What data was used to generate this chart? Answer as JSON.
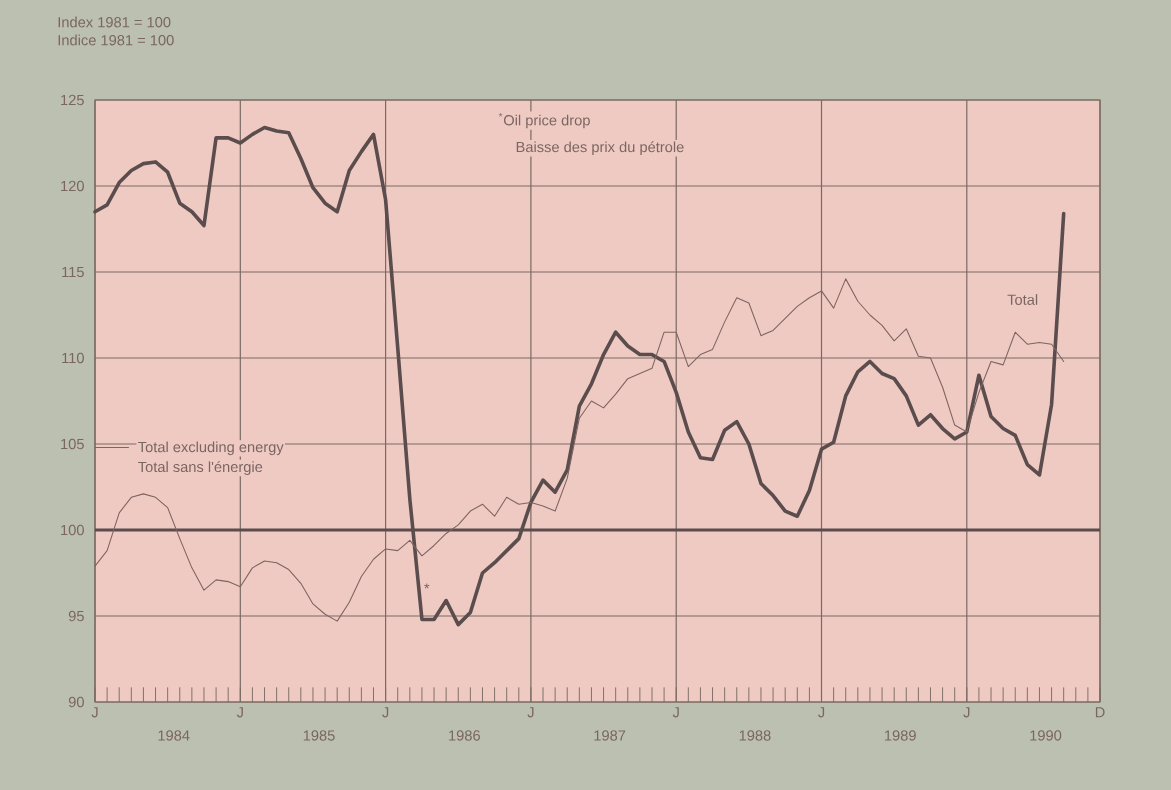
{
  "chart_data": {
    "type": "line",
    "ylabel": "Index 1981 = 100",
    "annotations": [
      "Indice 1981 = 100",
      "$^{*}$Oil price drop",
      "Baisse des prix du pétrole",
      "Total sans l'énergie",
      "*",
      "1984",
      "1985",
      "1986",
      "1987",
      "1988",
      "1989",
      "1990"
    ],
    "categories": [
      "J",
      null,
      null,
      null,
      null,
      null,
      null,
      null,
      null,
      null,
      null,
      null,
      "J",
      null,
      null,
      null,
      null,
      null,
      null,
      null,
      null,
      null,
      null,
      null,
      "J",
      null,
      null,
      null,
      null,
      null,
      null,
      null,
      null,
      null,
      null,
      null,
      "J",
      null,
      null,
      null,
      null,
      null,
      null,
      null,
      null,
      null,
      null,
      null,
      "J",
      null,
      null,
      null,
      null,
      null,
      null,
      null,
      null,
      null,
      null,
      null,
      "J",
      null,
      null,
      null,
      null,
      null,
      null,
      null,
      null,
      null,
      null,
      null,
      "J",
      null,
      null,
      null,
      null,
      null,
      null,
      null,
      null,
      null,
      null,
      "D"
    ],
    "series": [
      {
        "name": "Total",
        "color": "#5b4d4d",
        "values": [
          118.5,
          118.9,
          120.2,
          120.9,
          121.3,
          121.4,
          120.8,
          119.0,
          118.5,
          117.7,
          122.8,
          122.8,
          122.5,
          123.0,
          123.4,
          123.2,
          123.1,
          121.6,
          119.9,
          119.0,
          118.5,
          120.9,
          122.0,
          123.0,
          119.2,
          110.6,
          101.8,
          94.8,
          94.8,
          95.9,
          94.5,
          95.2,
          97.5,
          98.1,
          98.8,
          99.5,
          101.6,
          102.9,
          102.2,
          103.5,
          107.2,
          108.5,
          110.2,
          111.5,
          110.7,
          110.2,
          110.2,
          109.8,
          108.0,
          105.7,
          104.2,
          104.1,
          105.8,
          106.3,
          105.0,
          102.7,
          102.0,
          101.1,
          100.8,
          102.3,
          104.7,
          105.1,
          107.8,
          109.2,
          109.8,
          109.1,
          108.8,
          107.8,
          106.1,
          106.7,
          105.9,
          105.3,
          105.7,
          109.0,
          106.6,
          105.9,
          105.5,
          103.8,
          103.2,
          107.3,
          118.4,
          null,
          null,
          null
        ]
      },
      {
        "name": "Total excluding energy",
        "color": "#7d6461",
        "values": [
          97.9,
          98.8,
          101.0,
          101.9,
          102.1,
          101.9,
          101.3,
          99.5,
          97.8,
          96.5,
          97.1,
          97.0,
          96.7,
          97.8,
          98.2,
          98.1,
          97.7,
          96.9,
          95.7,
          95.1,
          94.7,
          95.8,
          97.3,
          98.3,
          98.9,
          98.8,
          99.4,
          98.5,
          99.1,
          99.8,
          100.3,
          101.1,
          101.5,
          100.8,
          101.9,
          101.5,
          101.6,
          101.4,
          101.1,
          103.0,
          106.5,
          107.5,
          107.1,
          107.9,
          108.8,
          109.1,
          109.4,
          111.5,
          111.5,
          109.5,
          110.2,
          110.5,
          112.1,
          113.5,
          113.2,
          111.3,
          111.6,
          112.3,
          113.0,
          113.5,
          113.9,
          112.9,
          114.6,
          113.3,
          112.5,
          111.9,
          111.0,
          111.7,
          110.1,
          110.0,
          108.3,
          106.1,
          105.7,
          108.0,
          109.8,
          109.6,
          111.5,
          110.8,
          110.9,
          110.8,
          109.8,
          null,
          null,
          null
        ]
      }
    ],
    "ylim": [
      90,
      125
    ],
    "yticks": [
      90,
      95,
      100,
      105,
      110,
      115,
      120,
      125
    ],
    "ref_lines": [
      {
        "axis": "y",
        "value": 100,
        "color": "#5b4d4d"
      }
    ],
    "grid": true,
    "legend": "left",
    "marker": "none",
    "line_style": "solid"
  }
}
